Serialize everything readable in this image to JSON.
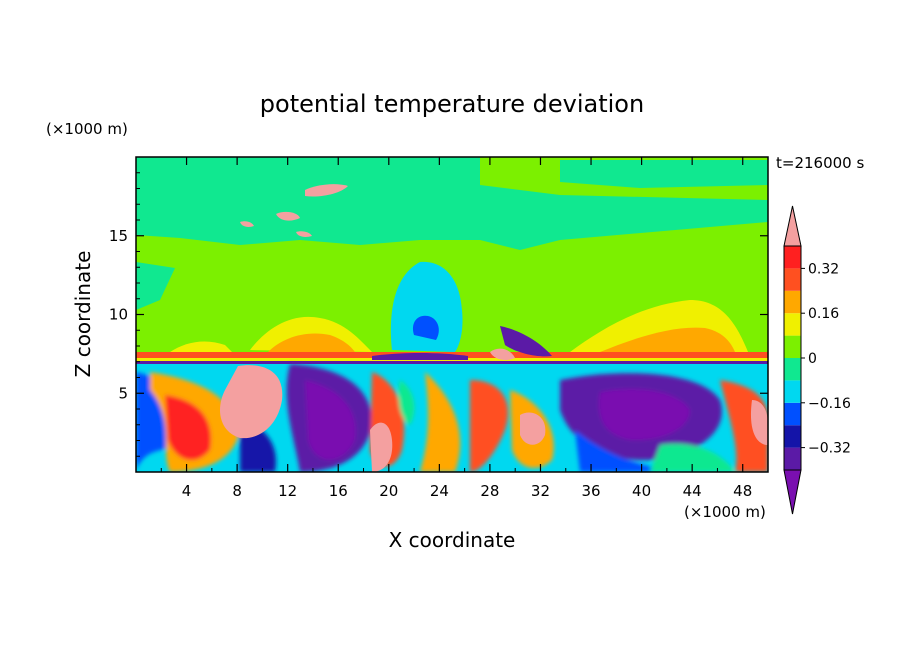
{
  "chart_data": {
    "type": "heatmap",
    "title": "potential temperature deviation",
    "xlabel": "X coordinate",
    "ylabel": "Z coordinate",
    "x_unit": "(×1000 m)",
    "y_unit": "(×1000 m)",
    "time_label": "t=216000 s",
    "xlim": [
      0,
      50
    ],
    "ylim": [
      0,
      20
    ],
    "x_ticks": [
      4,
      8,
      12,
      16,
      20,
      24,
      28,
      32,
      36,
      40,
      44,
      48
    ],
    "y_ticks": [
      5,
      10,
      15
    ],
    "colorbar": {
      "levels": [
        -0.4,
        -0.32,
        -0.24,
        -0.16,
        -0.08,
        0,
        0.08,
        0.16,
        0.24,
        0.32,
        0.4
      ],
      "tick_labels": [
        "0.32",
        "0.16",
        "0",
        "−0.16",
        "−0.32"
      ],
      "tick_values": [
        0.32,
        0.16,
        0,
        -0.16,
        -0.32
      ],
      "colors": [
        "#7a0fb0",
        "#5b1aa6",
        "#1414a8",
        "#0050ff",
        "#00d8f0",
        "#10e890",
        "#7cf000",
        "#f0f000",
        "#ffa800",
        "#ff5020",
        "#ff2020",
        "#f4a0a0"
      ]
    },
    "regions": {
      "upper_layer_z": [
        7.2,
        20
      ],
      "upper_dominant_level": 0.02,
      "lower_layer_z": [
        0,
        7.2
      ],
      "lower_range": [
        -0.4,
        0.4
      ]
    }
  },
  "colors": {
    "background": "#ffffff",
    "axis": "#000000"
  }
}
